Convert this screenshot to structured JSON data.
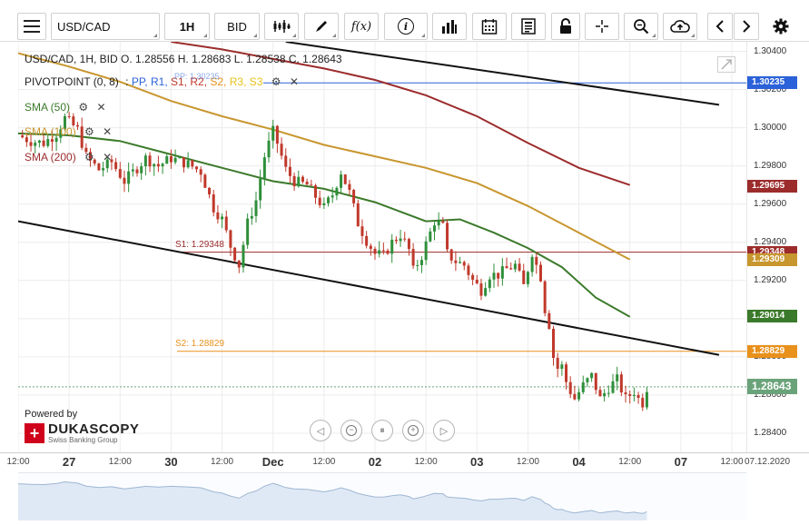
{
  "toolbar": {
    "menu_icon": "hamburger-icon",
    "symbol": "USD/CAD",
    "timeframe": "1H",
    "side": "BID",
    "chart_type_icon": "candlestick-icon",
    "draw_icon": "pencil-icon",
    "fx_label": "f(x)",
    "info_label": "i",
    "volume_icon": "bar-chart-icon",
    "calendar_icon": "calendar-icon",
    "news_icon": "newspaper-icon",
    "lock_icon": "lock-icon",
    "crosshair_icon": "crosshair-icon",
    "zoom_icon": "zoom-icon",
    "cloud_icon": "cloud-upload-icon",
    "prev_icon": "chevron-left-icon",
    "next_icon": "chevron-right-icon",
    "settings_icon": "gear-icon"
  },
  "header": {
    "ohlc_text": "USD/CAD, 1H, BID    O. 1.28556 H. 1.28683 L. 1.28538 C. 1.28643",
    "pivot_label": "PIVOTPOINT (0, 8)",
    "pivot_items": [
      {
        "text": "PP,",
        "color": "#2b62d9"
      },
      {
        "text": "R1,",
        "color": "#2b62d9"
      },
      {
        "text": "S1,",
        "color": "#c0392b"
      },
      {
        "text": "R2,",
        "color": "#c0392b"
      },
      {
        "text": "S2,",
        "color": "#e8911c"
      },
      {
        "text": "R3,",
        "color": "#e8c21c"
      },
      {
        "text": "S3",
        "color": "#e8c21c"
      }
    ],
    "pp_ghost": "PP: 1.30235",
    "sma50": "SMA (50)",
    "sma100": "SMA (100)",
    "sma200": "SMA (200)"
  },
  "brand": {
    "powered_by": "Powered by",
    "name": "DUKASCOPY",
    "tagline": "Swiss Banking Group"
  },
  "levels": {
    "s1_label": "S1: 1.29348",
    "s2_label": "S2: 1.28829"
  },
  "nav_controls": [
    "◁",
    "−",
    "⏸",
    "+",
    "▷"
  ],
  "chart_data": {
    "type": "candlestick",
    "symbol": "USD/CAD",
    "timeframe": "1H",
    "price": "BID",
    "ylim": [
      1.283,
      1.3045
    ],
    "y_ticks": [
      "1.30400",
      "1.30200",
      "1.30000",
      "1.29800",
      "1.29600",
      "1.29400",
      "1.29200",
      "1.29000",
      "1.28800",
      "1.28600",
      "1.28400"
    ],
    "x_labels": [
      {
        "t": 0,
        "label": "12:00",
        "major": false
      },
      {
        "t": 12,
        "label": "27",
        "major": true
      },
      {
        "t": 24,
        "label": "12:00",
        "major": false
      },
      {
        "t": 36,
        "label": "30",
        "major": true
      },
      {
        "t": 48,
        "label": "12:00",
        "major": false
      },
      {
        "t": 60,
        "label": "Dec",
        "major": true
      },
      {
        "t": 72,
        "label": "12:00",
        "major": false
      },
      {
        "t": 84,
        "label": "02",
        "major": true
      },
      {
        "t": 96,
        "label": "12:00",
        "major": false
      },
      {
        "t": 108,
        "label": "03",
        "major": true
      },
      {
        "t": 120,
        "label": "12:00",
        "major": false
      },
      {
        "t": 132,
        "label": "04",
        "major": true
      },
      {
        "t": 144,
        "label": "12:00",
        "major": false
      },
      {
        "t": 156,
        "label": "07",
        "major": true
      },
      {
        "t": 168,
        "label": "12:00",
        "major": false
      }
    ],
    "last_date_label": "07.12.2020",
    "close_path": [
      [
        0,
        1.2996
      ],
      [
        3,
        1.2993
      ],
      [
        6,
        1.2992
      ],
      [
        9,
        1.2997
      ],
      [
        11,
        1.3005
      ],
      [
        14,
        1.2999
      ],
      [
        16,
        1.2985
      ],
      [
        19,
        1.2978
      ],
      [
        22,
        1.2982
      ],
      [
        25,
        1.2972
      ],
      [
        28,
        1.2979
      ],
      [
        30,
        1.2984
      ],
      [
        33,
        1.298
      ],
      [
        36,
        1.2984
      ],
      [
        40,
        1.2981
      ],
      [
        43,
        1.2977
      ],
      [
        46,
        1.2958
      ],
      [
        48,
        1.2952
      ],
      [
        50,
        1.2938
      ],
      [
        52,
        1.2928
      ],
      [
        54,
        1.295
      ],
      [
        56,
        1.2962
      ],
      [
        58,
        1.2985
      ],
      [
        60,
        1.2998
      ],
      [
        61,
        1.2992
      ],
      [
        63,
        1.2978
      ],
      [
        65,
        1.2972
      ],
      [
        68,
        1.297
      ],
      [
        70,
        1.2964
      ],
      [
        72,
        1.2958
      ],
      [
        74,
        1.2965
      ],
      [
        76,
        1.2977
      ],
      [
        78,
        1.2966
      ],
      [
        80,
        1.295
      ],
      [
        82,
        1.2941
      ],
      [
        84,
        1.2934
      ],
      [
        86,
        1.2933
      ],
      [
        88,
        1.294
      ],
      [
        90,
        1.2944
      ],
      [
        92,
        1.2936
      ],
      [
        93,
        1.2925
      ],
      [
        95,
        1.2933
      ],
      [
        98,
        1.2951
      ],
      [
        100,
        1.2948
      ],
      [
        101,
        1.2934
      ],
      [
        103,
        1.293
      ],
      [
        105,
        1.2928
      ],
      [
        107,
        1.292
      ],
      [
        109,
        1.2915
      ],
      [
        111,
        1.2923
      ],
      [
        113,
        1.2923
      ],
      [
        115,
        1.2926
      ],
      [
        117,
        1.2928
      ],
      [
        119,
        1.2917
      ],
      [
        121,
        1.2935
      ],
      [
        122,
        1.2928
      ],
      [
        123,
        1.2922
      ],
      [
        124,
        1.2905
      ],
      [
        125,
        1.2897
      ],
      [
        126,
        1.288
      ],
      [
        127,
        1.2874
      ],
      [
        128,
        1.2875
      ],
      [
        129,
        1.2867
      ],
      [
        130,
        1.2862
      ],
      [
        131,
        1.2858
      ],
      [
        133,
        1.2865
      ],
      [
        135,
        1.287
      ],
      [
        137,
        1.2858
      ],
      [
        139,
        1.2864
      ],
      [
        141,
        1.2868
      ],
      [
        143,
        1.2858
      ],
      [
        145,
        1.2862
      ],
      [
        146,
        1.2858
      ],
      [
        147,
        1.2856
      ],
      [
        148,
        1.2864
      ]
    ],
    "last_close": "1.28643",
    "sma": [
      {
        "name": "SMA (50)",
        "color": "#3b7a2a",
        "last": "1.29014",
        "points": [
          [
            0,
            1.2997
          ],
          [
            12,
            1.2996
          ],
          [
            24,
            1.2993
          ],
          [
            36,
            1.2986
          ],
          [
            48,
            1.2979
          ],
          [
            60,
            1.2972
          ],
          [
            72,
            1.2968
          ],
          [
            84,
            1.2961
          ],
          [
            96,
            1.2951
          ],
          [
            104,
            1.2952
          ],
          [
            112,
            1.2945
          ],
          [
            120,
            1.2937
          ],
          [
            128,
            1.2927
          ],
          [
            136,
            1.2911
          ],
          [
            144,
            1.2901
          ]
        ]
      },
      {
        "name": "SMA (100)",
        "color": "#c8962e",
        "last": "1.29309",
        "points": [
          [
            0,
            1.3039
          ],
          [
            12,
            1.3032
          ],
          [
            24,
            1.3024
          ],
          [
            36,
            1.3014
          ],
          [
            48,
            1.3006
          ],
          [
            60,
            1.2999
          ],
          [
            72,
            1.2991
          ],
          [
            84,
            1.2985
          ],
          [
            96,
            1.2979
          ],
          [
            108,
            1.2971
          ],
          [
            120,
            1.2959
          ],
          [
            132,
            1.2945
          ],
          [
            144,
            1.2931
          ]
        ]
      },
      {
        "name": "SMA (200)",
        "color": "#9c2c2c",
        "last": "1.29695",
        "points": [
          [
            36,
            1.3045
          ],
          [
            48,
            1.3041
          ],
          [
            60,
            1.3036
          ],
          [
            72,
            1.3031
          ],
          [
            84,
            1.3025
          ],
          [
            96,
            1.3017
          ],
          [
            108,
            1.3006
          ],
          [
            120,
            1.2992
          ],
          [
            132,
            1.2979
          ],
          [
            144,
            1.297
          ]
        ]
      }
    ],
    "pivots": [
      {
        "name": "PP",
        "value": "1.30235",
        "color": "#2b62d9"
      },
      {
        "name": "S1",
        "value": "1.29348",
        "color": "#9c2c2c"
      },
      {
        "name": "S2",
        "value": "1.28829",
        "color": "#e8911c"
      }
    ],
    "trendlines": [
      {
        "points": [
          [
            63,
            1.3045
          ],
          [
            165,
            1.3012
          ]
        ],
        "color": "#111111"
      },
      {
        "points": [
          [
            0,
            1.2951
          ],
          [
            165,
            1.2881
          ]
        ],
        "color": "#111111"
      }
    ],
    "colors": {
      "bull": "#2f8f3a",
      "bear": "#c0392b",
      "grid": "#ececec",
      "last_tag": "#6aa37a"
    }
  }
}
